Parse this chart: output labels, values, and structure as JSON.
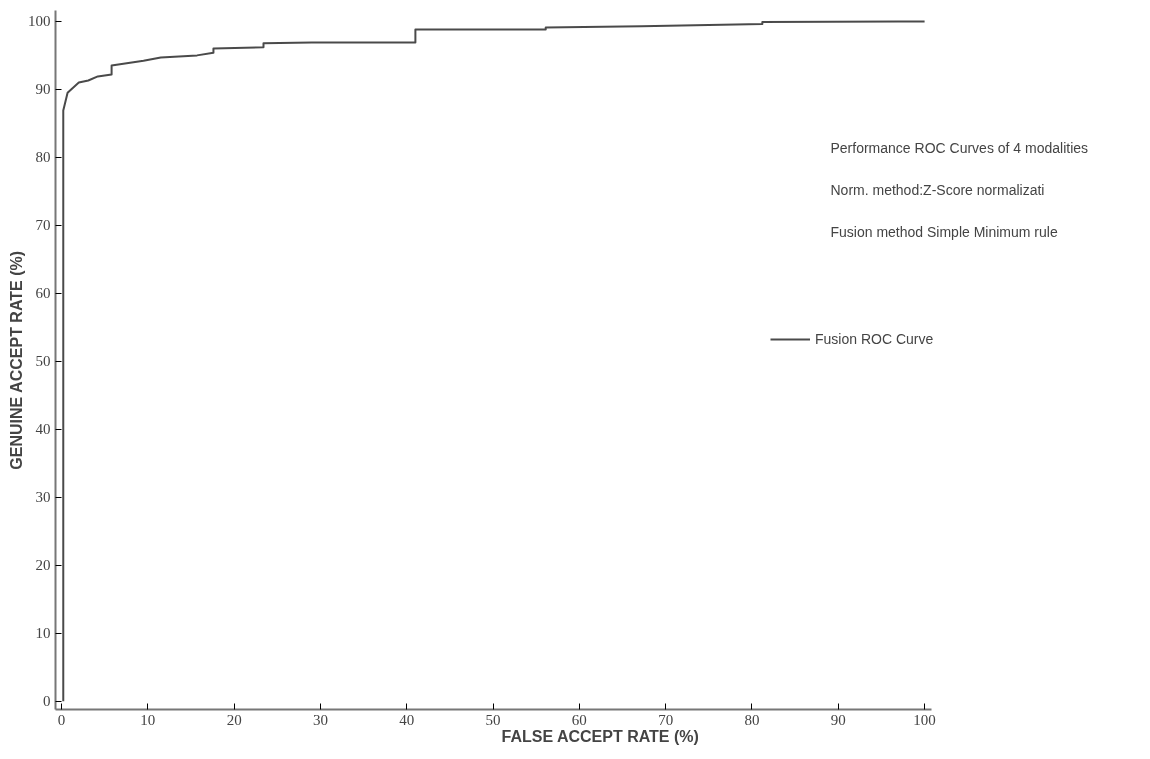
{
  "chart_data": {
    "type": "line",
    "xlabel": "FALSE ACCEPT RATE (%)",
    "ylabel": "GENUINE ACCEPT RATE (%)",
    "annotations": [
      "Performance ROC Curves of 4 modalities",
      "Norm. method:Z-Score normalizati",
      "Fusion method Simple Minimum rule"
    ],
    "xlim": [
      -0.7,
      100.8
    ],
    "ylim": [
      -1.2,
      101.6
    ],
    "xticks": [
      0,
      10,
      20,
      30,
      40,
      50,
      60,
      70,
      80,
      90,
      100
    ],
    "yticks": [
      0,
      10,
      20,
      30,
      40,
      50,
      60,
      70,
      80,
      90,
      100
    ],
    "grid": false,
    "legend": "right",
    "line_style": "solid",
    "series": [
      {
        "name": "Fusion ROC Curve",
        "color": "#4a4a4a",
        "x": [
          0.2,
          0.2,
          0.7,
          2.0,
          3.1,
          4.2,
          5.8,
          5.8,
          9.5,
          11.5,
          15.7,
          17.6,
          17.6,
          23.4,
          23.4,
          29.0,
          41.0,
          41.0,
          56.1,
          56.1,
          67.2,
          81.2,
          81.2,
          96.9,
          100
        ],
        "values": [
          0,
          86.9,
          89.5,
          91.0,
          91.3,
          91.9,
          92.2,
          93.5,
          94.2,
          94.7,
          95.0,
          95.4,
          96.0,
          96.2,
          96.8,
          96.9,
          96.9,
          98.8,
          98.8,
          99.1,
          99.3,
          99.6,
          99.9,
          100.0,
          100.0
        ]
      }
    ]
  }
}
